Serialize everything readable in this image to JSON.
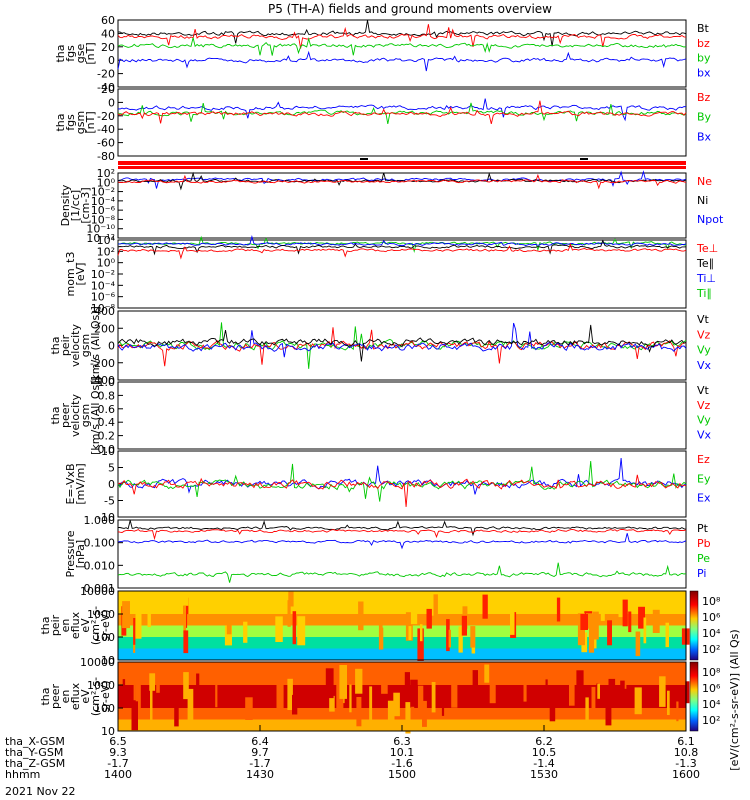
{
  "title": "P5 (TH-A) fields and ground moments overview",
  "date": "2021 Nov 22",
  "colors": {
    "black": "#000000",
    "red": "#ff0000",
    "green": "#00c800",
    "blue": "#0000ff"
  },
  "panels": [
    {
      "id": "fgs",
      "ylabel": [
        "tha",
        "fgs",
        "gse",
        "[nT]"
      ],
      "ticks": [
        "60",
        "40",
        "20",
        "0",
        "-20",
        "-40"
      ],
      "legend": [
        {
          "t": "Bt",
          "c": "black"
        },
        {
          "t": "bz",
          "c": "red"
        },
        {
          "t": "by",
          "c": "green"
        },
        {
          "t": "bx",
          "c": "blue"
        }
      ]
    },
    {
      "id": "fgsgsm",
      "ylabel": [
        "tha",
        "fgs",
        "gsm",
        "[nT]"
      ],
      "ticks": [
        "20",
        "0",
        "-20",
        "-40",
        "-60",
        "-80"
      ],
      "legend": [
        {
          "t": "Bz",
          "c": "red"
        },
        {
          "t": "By",
          "c": "green"
        },
        {
          "t": "Bx",
          "c": "blue"
        }
      ]
    },
    {
      "id": "density",
      "ylabel": [
        "Density",
        "[1/cc]",
        "[cm-3]"
      ],
      "ticks": [
        "10²",
        "10⁰",
        "10⁻²",
        "10⁻⁴",
        "10⁻⁶",
        "10⁻⁸",
        "10⁻¹⁰",
        "10⁻¹²"
      ],
      "legend": [
        {
          "t": "Ne",
          "c": "red"
        },
        {
          "t": "Ni",
          "c": "black"
        },
        {
          "t": "Npot",
          "c": "blue"
        }
      ]
    },
    {
      "id": "temp",
      "ylabel": [
        "mom_t3",
        "[eV]"
      ],
      "ticks": [
        "10⁴",
        "10²",
        "10⁰",
        "10⁻²",
        "10⁻⁴",
        "10⁻⁶",
        "10⁻⁸"
      ],
      "legend": [
        {
          "t": "Te⊥",
          "c": "red"
        },
        {
          "t": "Te∥",
          "c": "black"
        },
        {
          "t": "Ti⊥",
          "c": "blue"
        },
        {
          "t": "Ti∥",
          "c": "green"
        }
      ]
    },
    {
      "id": "peirvel",
      "ylabel": [
        "tha",
        "peir",
        "velocity",
        "gsm",
        "[km/s (All Qs)]"
      ],
      "ticks": [
        "400",
        "200",
        "0",
        "-200",
        "-400"
      ],
      "legend": [
        {
          "t": "Vt",
          "c": "black"
        },
        {
          "t": "Vz",
          "c": "red"
        },
        {
          "t": "Vy",
          "c": "green"
        },
        {
          "t": "Vx",
          "c": "blue"
        }
      ]
    },
    {
      "id": "peervel",
      "ylabel": [
        "tha",
        "peer",
        "velocity",
        "gsm",
        "[km/s (All Qs)]"
      ],
      "ticks": [
        "1.0",
        "0.8",
        "0.6",
        "0.4",
        "0.2",
        "0.0"
      ],
      "legend": [
        {
          "t": "Vt",
          "c": "black"
        },
        {
          "t": "Vz",
          "c": "red"
        },
        {
          "t": "Vy",
          "c": "green"
        },
        {
          "t": "Vx",
          "c": "blue"
        }
      ]
    },
    {
      "id": "efield",
      "ylabel": [
        "E=-VxB",
        "[mV/m]"
      ],
      "ticks": [
        "10",
        "5",
        "0",
        "-5",
        "-10"
      ],
      "legend": [
        {
          "t": "Ez",
          "c": "red"
        },
        {
          "t": "Ey",
          "c": "green"
        },
        {
          "t": "Ex",
          "c": "blue"
        }
      ]
    },
    {
      "id": "pressure",
      "ylabel": [
        "Pressure",
        "[nPa]"
      ],
      "ticks": [
        "1.000",
        "0.100",
        "0.010",
        "0.001"
      ],
      "legend": [
        {
          "t": "Pt",
          "c": "black"
        },
        {
          "t": "Pb",
          "c": "red"
        },
        {
          "t": "Pe",
          "c": "green"
        },
        {
          "t": "Pi",
          "c": "blue"
        }
      ]
    },
    {
      "id": "peiren",
      "ylabel": [
        "tha",
        "peir",
        "en",
        "eflux",
        "eV",
        "(cm²-s-",
        "sr-eV)"
      ],
      "ticks": [
        "10000",
        "1000",
        "100",
        "10"
      ],
      "legend": []
    },
    {
      "id": "peeren",
      "ylabel": [
        "tha",
        "peer",
        "en",
        "eflux",
        "eV",
        "(cm²-s-",
        "sr-eV)"
      ],
      "ticks": [
        "10000",
        "1000",
        "100",
        "10"
      ],
      "legend": []
    }
  ],
  "colorbar": {
    "ticks": [
      "10⁸",
      "10⁶",
      "10⁴",
      "10²"
    ],
    "label": "[eV/(cm²-s-sr-eV)] (All Qs)"
  },
  "xaxis": {
    "row_labels": [
      "tha_X-GSM",
      "tha_Y-GSM",
      "tha_Z-GSM",
      "hhmm"
    ],
    "columns": [
      [
        "6.5",
        "9.3",
        "-1.7",
        "1400"
      ],
      [
        "6.4",
        "9.7",
        "-1.7",
        "1430"
      ],
      [
        "6.3",
        "10.1",
        "-1.6",
        "1500"
      ],
      [
        "6.2",
        "10.5",
        "-1.4",
        "1530"
      ],
      [
        "6.1",
        "10.8",
        "-1.3",
        "1600"
      ]
    ]
  }
}
